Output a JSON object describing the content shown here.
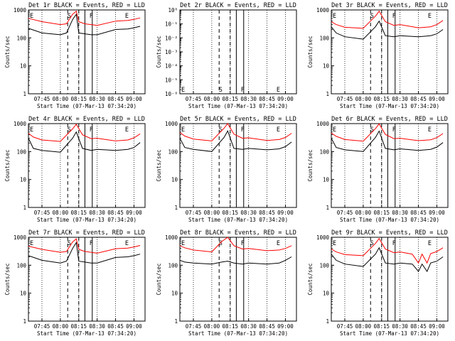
{
  "figure": {
    "xlabel": "Start Time (07-Mar-13 07:34:20)",
    "ylabel": "Counts/sec",
    "xticks": [
      "07:45",
      "08:00",
      "08:15",
      "08:30",
      "08:45",
      "09:00"
    ],
    "yticks": [
      "1",
      "10",
      "100",
      "1000"
    ],
    "yticks_tiny": [
      "10⁰",
      "10⁻¹",
      "10⁻²",
      "10⁻³",
      "10⁻⁴",
      "10⁻⁵",
      "10⁻⁶"
    ]
  },
  "colors": {
    "events": "#000000",
    "lld": "#ff0000"
  },
  "chart_data": [
    {
      "type": "line",
      "title": "Det 1r BLACK = Events, RED = LLD",
      "ylim": [
        1,
        1000
      ],
      "yscale": "log",
      "grid": true,
      "markers": [
        "E",
        "S",
        "F",
        "E"
      ],
      "series": [
        {
          "x": [
            "07:34",
            "07:45",
            "08:00",
            "08:05",
            "08:10",
            "08:13",
            "08:15",
            "08:20",
            "08:25",
            "08:30",
            "08:45",
            "08:55",
            "09:00",
            "09:05"
          ],
          "values": [
            220,
            150,
            130,
            150,
            450,
            700,
            150,
            140,
            130,
            130,
            200,
            210,
            230,
            260
          ]
        },
        {
          "x": [
            "07:34",
            "07:45",
            "08:00",
            "08:05",
            "08:10",
            "08:13",
            "08:15",
            "08:20",
            "08:25",
            "08:30",
            "08:45",
            "08:55",
            "09:00",
            "09:05"
          ],
          "values": [
            500,
            380,
            300,
            320,
            700,
            900,
            380,
            320,
            300,
            280,
            400,
            420,
            460,
            520
          ]
        }
      ]
    },
    {
      "type": "line",
      "title": "Det 2r BLACK = Events, RED = LLD",
      "ylim": [
        1e-06,
        1
      ],
      "yscale": "log",
      "grid": true,
      "markers": [
        "E",
        "S",
        "F",
        "E"
      ],
      "series": []
    },
    {
      "type": "line",
      "title": "Det 3r BLACK = Events, RED = LLD",
      "ylim": [
        1,
        1000
      ],
      "yscale": "log",
      "grid": true,
      "markers": [
        "E",
        "S",
        "F",
        "E"
      ],
      "series": [
        {
          "x": [
            "07:34",
            "07:38",
            "07:45",
            "08:00",
            "08:10",
            "08:13",
            "08:18",
            "08:25",
            "08:30",
            "08:45",
            "08:55",
            "09:00",
            "09:05"
          ],
          "values": [
            250,
            150,
            110,
            90,
            250,
            400,
            120,
            110,
            120,
            110,
            120,
            140,
            200
          ]
        },
        {
          "x": [
            "07:34",
            "07:38",
            "07:45",
            "08:00",
            "08:10",
            "08:13",
            "08:18",
            "08:25",
            "08:30",
            "08:45",
            "08:55",
            "09:00",
            "09:05"
          ],
          "values": [
            380,
            300,
            240,
            220,
            600,
            900,
            380,
            280,
            300,
            230,
            250,
            300,
            420
          ]
        }
      ]
    },
    {
      "type": "line",
      "title": "Det 4r BLACK = Events, RED = LLD",
      "ylim": [
        1,
        1000
      ],
      "yscale": "log",
      "grid": true,
      "markers": [
        "E",
        "S",
        "F",
        "E"
      ],
      "series": [
        {
          "x": [
            "07:34",
            "07:38",
            "07:45",
            "08:00",
            "08:10",
            "08:13",
            "08:18",
            "08:25",
            "08:30",
            "08:45",
            "08:55",
            "09:00",
            "09:05"
          ],
          "values": [
            300,
            130,
            110,
            95,
            300,
            500,
            130,
            110,
            120,
            110,
            120,
            140,
            210
          ]
        },
        {
          "x": [
            "07:34",
            "07:38",
            "07:45",
            "08:00",
            "08:10",
            "08:13",
            "08:18",
            "08:25",
            "08:30",
            "08:45",
            "08:55",
            "09:00",
            "09:05"
          ],
          "values": [
            450,
            330,
            260,
            230,
            650,
            950,
            400,
            290,
            300,
            240,
            260,
            310,
            430
          ]
        }
      ]
    },
    {
      "type": "line",
      "title": "Det 5r BLACK = Events, RED = LLD",
      "ylim": [
        1,
        1000
      ],
      "yscale": "log",
      "grid": true,
      "markers": [
        "E",
        "S",
        "F",
        "E"
      ],
      "series": [
        {
          "x": [
            "07:34",
            "07:38",
            "07:45",
            "08:00",
            "08:10",
            "08:13",
            "08:18",
            "08:25",
            "08:30",
            "08:45",
            "08:55",
            "09:00",
            "09:05"
          ],
          "values": [
            300,
            140,
            120,
            100,
            320,
            550,
            130,
            120,
            130,
            115,
            125,
            150,
            220
          ]
        },
        {
          "x": [
            "07:34",
            "07:38",
            "07:45",
            "08:00",
            "08:10",
            "08:13",
            "08:18",
            "08:25",
            "08:30",
            "08:45",
            "08:55",
            "09:00",
            "09:05"
          ],
          "values": [
            480,
            360,
            280,
            240,
            680,
            1000,
            420,
            300,
            310,
            250,
            270,
            320,
            450
          ]
        }
      ]
    },
    {
      "type": "line",
      "title": "Det 6r BLACK = Events, RED = LLD",
      "ylim": [
        1,
        1000
      ],
      "yscale": "log",
      "grid": true,
      "markers": [
        "E",
        "S",
        "F",
        "E"
      ],
      "series": [
        {
          "x": [
            "07:34",
            "07:38",
            "07:45",
            "08:00",
            "08:10",
            "08:13",
            "08:18",
            "08:25",
            "08:30",
            "08:45",
            "08:55",
            "09:00",
            "09:05"
          ],
          "values": [
            300,
            140,
            115,
            100,
            320,
            540,
            130,
            115,
            125,
            110,
            120,
            145,
            210
          ]
        },
        {
          "x": [
            "07:34",
            "07:38",
            "07:45",
            "08:00",
            "08:10",
            "08:13",
            "08:18",
            "08:25",
            "08:30",
            "08:45",
            "08:55",
            "09:00",
            "09:05"
          ],
          "values": [
            460,
            350,
            270,
            235,
            660,
            980,
            410,
            290,
            300,
            245,
            265,
            315,
            440
          ]
        }
      ]
    },
    {
      "type": "line",
      "title": "Det 7r BLACK = Events, RED = LLD",
      "ylim": [
        1,
        1000
      ],
      "yscale": "log",
      "grid": true,
      "markers": [
        "E",
        "S",
        "F",
        "E"
      ],
      "series": [
        {
          "x": [
            "07:34",
            "07:45",
            "08:00",
            "08:05",
            "08:10",
            "08:13",
            "08:15",
            "08:20",
            "08:25",
            "08:30",
            "08:45",
            "08:55",
            "09:00",
            "09:05"
          ],
          "values": [
            220,
            150,
            120,
            140,
            400,
            650,
            140,
            130,
            120,
            120,
            190,
            200,
            220,
            250
          ]
        },
        {
          "x": [
            "07:34",
            "07:45",
            "08:00",
            "08:05",
            "08:10",
            "08:13",
            "08:15",
            "08:20",
            "08:25",
            "08:30",
            "08:45",
            "08:55",
            "09:00",
            "09:05"
          ],
          "values": [
            480,
            370,
            290,
            310,
            680,
            880,
            370,
            310,
            290,
            270,
            390,
            410,
            450,
            510
          ]
        }
      ]
    },
    {
      "type": "line",
      "title": "Det 8r BLACK = Events, RED = LLD",
      "ylim": [
        1,
        1000
      ],
      "yscale": "log",
      "grid": true,
      "markers": [
        "E",
        "S",
        "F",
        "E"
      ],
      "series": [
        {
          "x": [
            "07:34",
            "07:38",
            "07:45",
            "08:00",
            "08:08",
            "08:13",
            "08:18",
            "08:25",
            "08:30",
            "08:45",
            "08:55",
            "09:00",
            "09:05"
          ],
          "values": [
            150,
            130,
            120,
            110,
            130,
            140,
            120,
            110,
            120,
            110,
            120,
            150,
            200
          ]
        },
        {
          "x": [
            "07:34",
            "07:38",
            "07:45",
            "08:00",
            "08:08",
            "08:13",
            "08:18",
            "08:25",
            "08:30",
            "08:45",
            "08:55",
            "09:00",
            "09:05"
          ],
          "values": [
            500,
            420,
            350,
            300,
            700,
            1000,
            500,
            380,
            400,
            330,
            350,
            400,
            500
          ]
        }
      ]
    },
    {
      "type": "line",
      "title": "Det 9r BLACK = Events, RED = LLD",
      "ylim": [
        1,
        1000
      ],
      "yscale": "log",
      "grid": true,
      "markers": [
        "E",
        "S",
        "F",
        "E"
      ],
      "series": [
        {
          "x": [
            "07:34",
            "07:38",
            "07:45",
            "08:00",
            "08:10",
            "08:13",
            "08:18",
            "08:25",
            "08:30",
            "08:40",
            "08:45",
            "08:48",
            "08:52",
            "08:55",
            "09:00",
            "09:05"
          ],
          "values": [
            250,
            150,
            110,
            90,
            250,
            420,
            120,
            110,
            120,
            110,
            60,
            110,
            60,
            120,
            140,
            200
          ]
        },
        {
          "x": [
            "07:34",
            "07:38",
            "07:45",
            "08:00",
            "08:10",
            "08:13",
            "08:18",
            "08:25",
            "08:30",
            "08:40",
            "08:45",
            "08:48",
            "08:52",
            "08:55",
            "09:00",
            "09:05"
          ],
          "values": [
            380,
            300,
            240,
            220,
            600,
            900,
            380,
            280,
            300,
            250,
            120,
            250,
            120,
            260,
            310,
            420
          ]
        }
      ]
    }
  ]
}
